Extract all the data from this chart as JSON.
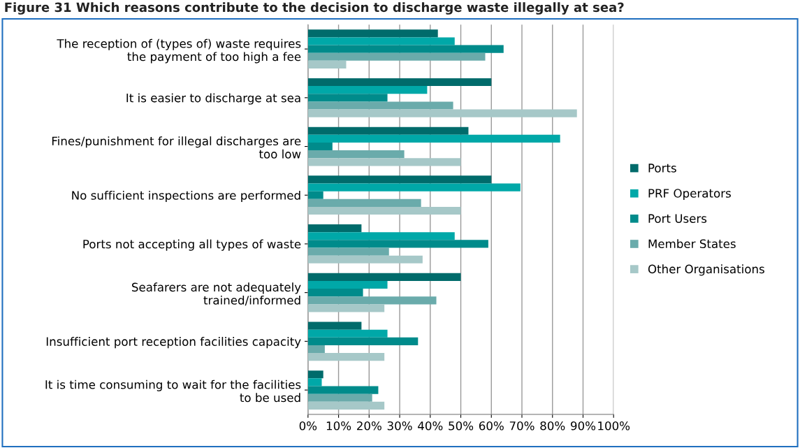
{
  "chart_data": {
    "type": "bar",
    "orientation": "horizontal",
    "title": "Figure 31 Which reasons contribute to the decision to discharge waste illegally at sea?",
    "categories": [
      "The reception of (types of) waste requires\nthe payment of too high a fee",
      "It is easier to discharge at sea",
      "Fines/punishment for illegal discharges are\ntoo low",
      "No sufficient inspections are performed",
      "Ports not accepting all types of waste",
      "Seafarers are not adequately\ntrained/informed",
      "Insufficient port reception facilities capacity",
      "It is time consuming to wait for the facilities\nto be used"
    ],
    "series": [
      {
        "name": "Ports",
        "color": "#006b6b",
        "values": [
          42.5,
          60,
          52.5,
          60,
          17.5,
          50,
          17.5,
          5
        ]
      },
      {
        "name": "PRF Operators",
        "color": "#00a8a8",
        "values": [
          48,
          39,
          82.5,
          69.5,
          48,
          26,
          26,
          4.5
        ]
      },
      {
        "name": "Port Users",
        "color": "#008b8b",
        "values": [
          64,
          26,
          8,
          5,
          59,
          18,
          36,
          23
        ]
      },
      {
        "name": "Member States",
        "color": "#6aabab",
        "values": [
          58,
          47.5,
          31.5,
          37,
          26.5,
          42,
          5.5,
          21
        ]
      },
      {
        "name": "Other Organisations",
        "color": "#a6c8c8",
        "values": [
          12.5,
          88,
          50,
          50,
          37.5,
          25,
          25,
          25
        ]
      }
    ],
    "xlim": [
      0,
      100
    ],
    "xticks": [
      {
        "value": 0,
        "label": "0%"
      },
      {
        "value": 10,
        "label": "10%"
      },
      {
        "value": 20,
        "label": "20%"
      },
      {
        "value": 30,
        "label": "30%"
      },
      {
        "value": 40,
        "label": "40%"
      },
      {
        "value": 50,
        "label": "50%"
      },
      {
        "value": 60,
        "label": "60%"
      },
      {
        "value": 70,
        "label": "70%"
      },
      {
        "value": 80,
        "label": "80%"
      },
      {
        "value": 90,
        "label": "90%"
      },
      {
        "value": 100,
        "label": "100%"
      }
    ],
    "grid": "x",
    "legend": "right"
  }
}
